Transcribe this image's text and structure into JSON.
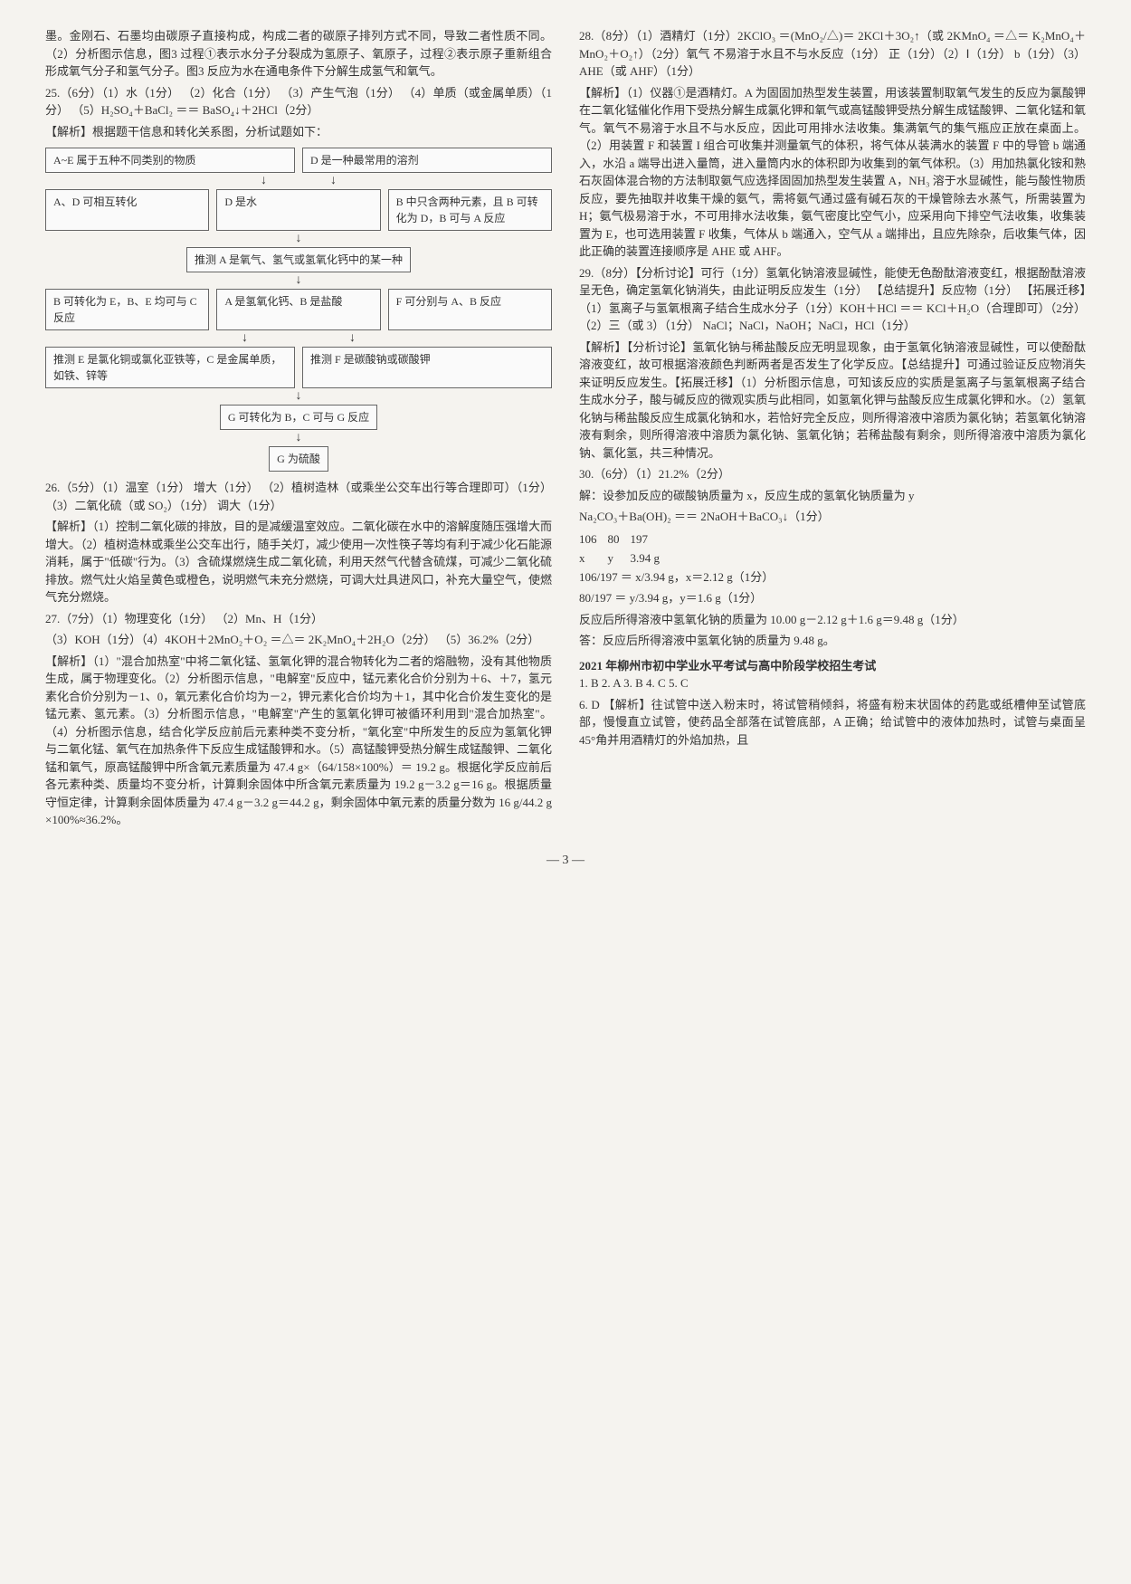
{
  "left": {
    "p1": "墨。金刚石、石墨均由碳原子直接构成，构成二者的碳原子排列方式不同，导致二者性质不同。（2）分析图示信息，图3 过程①表示水分子分裂成为氢原子、氧原子，过程②表示原子重新组合形成氧气分子和氢气分子。图3 反应为水在通电条件下分解生成氢气和氧气。",
    "q25_title": "25.（6分）（1）水（1分）  （2）化合（1分）  （3）产生气泡（1分）  （4）单质（或金属单质）（1分）  （5）H₂SO₄＋BaCl₂ ＝＝ BaSO₄↓＋2HCl（2分）",
    "q25_jiexi": "【解析】根据题干信息和转化关系图，分析试题如下：",
    "boxA": "A~E 属于五种不同类别的物质",
    "boxD": "D 是一种最常用的溶剂",
    "boxAD": "A、D 可相互转化",
    "boxDwater": "D 是水",
    "boxB": "B 中只含两种元素，且 B 可转化为 D，B 可与 A 反应",
    "boxInferA": "推测 A 是氧气、氢气或氢氧化钙中的某一种",
    "boxBE": "B 可转化为 E，B、E 均可与 C 反应",
    "boxACa": "A 是氢氧化钙、B 是盐酸",
    "boxF": "F 可分别与 A、B 反应",
    "boxInferE": "推测 E 是氯化铜或氯化亚铁等，C 是金属单质，如铁、锌等",
    "boxInferF": "推测 F 是碳酸钠或碳酸钾",
    "boxG": "G 可转化为 B，C 可与 G 反应",
    "boxGresult": "G 为硫酸",
    "q26": "26.（5分）（1）温室（1分）  增大（1分）  （2）植树造林（或乘坐公交车出行等合理即可）（1分）  （3）二氧化硫（或 SO₂）（1分）  调大（1分）",
    "q26_jiexi": "【解析】（1）控制二氧化碳的排放，目的是减缓温室效应。二氧化碳在水中的溶解度随压强增大而增大。（2）植树造林或乘坐公交车出行，随手关灯，减少使用一次性筷子等均有利于减少化石能源消耗，属于\"低碳\"行为。（3）含硫煤燃烧生成二氧化硫，利用天然气代替含硫煤，可减少二氧化硫排放。燃气灶火焰呈黄色或橙色，说明燃气未充分燃烧，可调大灶具进风口，补充大量空气，使燃气充分燃烧。",
    "q27": "27.（7分）（1）物理变化（1分）  （2）Mn、H（1分）",
    "q27b": "（3）KOH（1分）（4）4KOH＋2MnO₂＋O₂ ＝△＝ 2K₂MnO₄＋2H₂O（2分）  （5）36.2%（2分）",
    "q27_jiexi": "【解析】（1）\"混合加热室\"中将二氧化锰、氢氧化钾的混合物转化为二者的熔融物，没有其他物质生成，属于物理变化。（2）分析图示信息，\"电解室\"反应中，锰元素化合价分别为＋6、＋7，氢元素化合价分别为－1、0，氧元素化合价均为－2，钾元素化合价均为＋1，其中化合价发生变化的是锰元素、氢元素。（3）分析图示信息，\"电解室\"产生的氢氧化钾可被循环利用到\"混合加热室\"。（4）分析图示信息，结合化学反应前后元素种类不变分析，\"氧化室\"中所发生的反应为氢氧化钾与二氧化锰、氧气在加热条件下反应生成锰酸钾和水。（5）高锰酸钾受热分解生成锰酸钾、二氧化锰和氧气，原高锰酸钾中所含氧元素质量为 47.4 g×（64/158×100%）＝ 19.2 g。根据化学反应前后各元素种类、质量均不变分析，计算剩余固体中所含氧元素质量为 19.2 g－3.2 g＝16 g。根据质量守恒定律，计算剩余固体质量为 47.4 g－3.2 g＝44.2 g，剩余固体中氧元素的质量分数为 16 g/44.2 g ×100%≈36.2%。"
  },
  "right": {
    "q28": "28.（8分）（1）酒精灯（1分）2KClO₃ ＝(MnO₂/△)＝ 2KCl＋3O₂↑（或 2KMnO₄ ＝△＝ K₂MnO₄＋MnO₂＋O₂↑）（2分）氧气 不易溶于水且不与水反应（1分）  正（1分）（2）Ⅰ（1分）  b（1分）（3）AHE（或 AHF）（1分）",
    "q28_jiexi": "【解析】（1）仪器①是酒精灯。A 为固固加热型发生装置，用该装置制取氧气发生的反应为氯酸钾在二氧化锰催化作用下受热分解生成氯化钾和氧气或高锰酸钾受热分解生成锰酸钾、二氧化锰和氧气。氧气不易溶于水且不与水反应，因此可用排水法收集。集满氧气的集气瓶应正放在桌面上。（2）用装置 F 和装置 I 组合可收集并测量氧气的体积，将气体从装满水的装置 F 中的导管 b 端通入，水沿 a 端导出进入量筒，进入量筒内水的体积即为收集到的氧气体积。（3）用加热氯化铵和熟石灰固体混合物的方法制取氨气应选择固固加热型发生装置 A，NH₃ 溶于水显碱性，能与酸性物质反应，要先抽取并收集干燥的氨气，需将氨气通过盛有碱石灰的干燥管除去水蒸气，所需装置为 H；氨气极易溶于水，不可用排水法收集，氨气密度比空气小，应采用向下排空气法收集，收集装置为 E，也可选用装置 F 收集，气体从 b 端通入，空气从 a 端排出，且应先除杂，后收集气体，因此正确的装置连接顺序是 AHE 或 AHF。",
    "q29": "29.（8分）【分析讨论】可行（1分）氢氧化钠溶液显碱性，能使无色酚酞溶液变红，根据酚酞溶液呈无色，确定氢氧化钠消失，由此证明反应发生（1分）  【总结提升】反应物（1分）  【拓展迁移】（1）氢离子与氢氧根离子结合生成水分子（1分）KOH＋HCl ＝＝ KCl＋H₂O（合理即可）（2分）  （2）三（或 3）（1分）  NaCl；NaCl，NaOH；NaCl，HCl（1分）",
    "q29_jiexi": "【解析】【分析讨论】氢氧化钠与稀盐酸反应无明显现象，由于氢氧化钠溶液显碱性，可以使酚酞溶液变红，故可根据溶液颜色判断两者是否发生了化学反应。【总结提升】可通过验证反应物消失来证明反应发生。【拓展迁移】（1）分析图示信息，可知该反应的实质是氢离子与氢氧根离子结合生成水分子，酸与碱反应的微观实质与此相同，如氢氧化钾与盐酸反应生成氯化钾和水。（2）氢氧化钠与稀盐酸反应生成氯化钠和水，若恰好完全反应，则所得溶液中溶质为氯化钠；若氢氧化钠溶液有剩余，则所得溶液中溶质为氯化钠、氢氧化钠；若稀盐酸有剩余，则所得溶液中溶质为氯化钠、氯化氢，共三种情况。",
    "q30": "30.（6分）（1）21.2%（2分）",
    "q30_step": "解：设参加反应的碳酸钠质量为 x，反应生成的氢氧化钠质量为 y",
    "q30_eq": "Na₂CO₃＋Ba(OH)₂ ＝＝ 2NaOH＋BaCO₃↓（1分）",
    "eq_r1c1": "106",
    "eq_r1c2": "80",
    "eq_r1c3": "197",
    "eq_r2c1": "x",
    "eq_r2c2": "y",
    "eq_r2c3": "3.94 g",
    "q30_calc1": "106/197 ＝ x/3.94 g，x＝2.12 g（1分）",
    "q30_calc2": "80/197 ＝ y/3.94 g，y＝1.6 g（1分）",
    "q30_calc3": "反应后所得溶液中氢氧化钠的质量为 10.00 g－2.12 g＋1.6 g＝9.48 g（1分）",
    "q30_calc4": "答：反应后所得溶液中氢氧化钠的质量为 9.48 g。",
    "exam_title": "2021 年柳州市初中学业水平考试与高中阶段学校招生考试",
    "q1to5": "1. B   2. A   3. B   4. C   5. C",
    "q6": "6. D  【解析】往试管中送入粉末时，将试管稍倾斜，将盛有粉末状固体的药匙或纸槽伸至试管底部，慢慢直立试管，使药品全部落在试管底部，A 正确；给试管中的液体加热时，试管与桌面呈 45°角并用酒精灯的外焰加热，且"
  },
  "page_number": "— 3 —"
}
